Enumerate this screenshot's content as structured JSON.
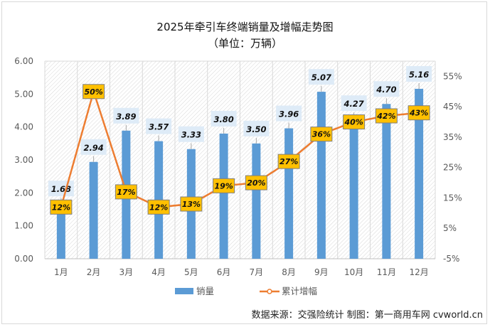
{
  "chart_data": {
    "type": "bar+line",
    "title": "2025年牵引车终端销量及增幅走势图",
    "subtitle": "（单位：万辆）",
    "categories": [
      "1月",
      "2月",
      "3月",
      "4月",
      "5月",
      "6月",
      "7月",
      "8月",
      "9月",
      "10月",
      "11月",
      "12月"
    ],
    "series": [
      {
        "name": "销量",
        "type": "bar",
        "axis": "left",
        "values": [
          1.68,
          2.94,
          3.89,
          3.57,
          3.33,
          3.8,
          3.5,
          3.96,
          5.07,
          4.27,
          4.7,
          5.16
        ],
        "labels": [
          "1.68",
          "2.94",
          "3.89",
          "3.57",
          "3.33",
          "3.80",
          "3.50",
          "3.96",
          "5.07",
          "4.27",
          "4.70",
          "5.16"
        ],
        "color": "#5b9bd5"
      },
      {
        "name": "累计增幅",
        "type": "line",
        "axis": "right",
        "values": [
          12,
          50,
          17,
          12,
          13,
          19,
          20,
          27,
          36,
          40,
          42,
          43
        ],
        "labels": [
          "12%",
          "50%",
          "17%",
          "12%",
          "13%",
          "19%",
          "20%",
          "27%",
          "36%",
          "40%",
          "42%",
          "43%"
        ],
        "color": "#ed7d31"
      }
    ],
    "left_axis": {
      "ylim": [
        0,
        6
      ],
      "ticks": [
        "0.00",
        "1.00",
        "2.00",
        "3.00",
        "4.00",
        "5.00",
        "6.00"
      ]
    },
    "right_axis": {
      "ylim": [
        -5,
        60
      ],
      "tick_values": [
        -5,
        5,
        15,
        25,
        35,
        45,
        55
      ],
      "ticks": [
        "-5%",
        "5%",
        "15%",
        "25%",
        "35%",
        "45%",
        "55%"
      ]
    },
    "legend": "bottom",
    "grid": true,
    "label_box_colors": {
      "bar": "#deebf7",
      "line": "#ffc000"
    }
  },
  "footer": {
    "source": "数据来源：交强险统计  制图：第一商用车网 cvworld.cn"
  }
}
